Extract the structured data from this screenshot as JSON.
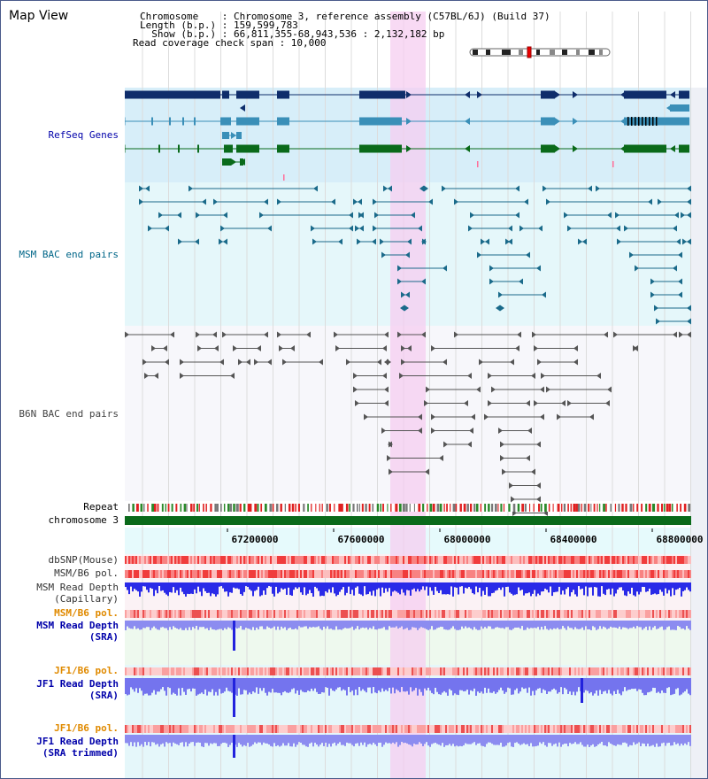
{
  "view": {
    "title": "Map View",
    "chromosome_line": "Chromosome    : Chromosome 3, reference assembly (C57BL/6J) (Build 37)",
    "length_line": "Length (b.p.) : 159,599,783",
    "show_line": "  Show (b.p.) : 66,811,355-68,943,536 : 2,132,182 bp",
    "coverage_line": "Read coverage check span : 10,000"
  },
  "tracks": {
    "refseq": "RefSeq Genes",
    "msm_bac": "MSM BAC end pairs",
    "b6n_bac": "B6N BAC end pairs",
    "repeat": "Repeat",
    "chromosome": "chromosome 3",
    "dbsnp": "dbSNP(Mouse)",
    "msm_b6_pol_1": "MSM/B6 pol.",
    "msm_depth_cap_1": "MSM Read Depth",
    "msm_depth_cap_2": "(Capillary)",
    "msm_b6_pol_2": "MSM/B6 pol.",
    "msm_depth_sra_1": "MSM Read Depth",
    "msm_depth_sra_2": "(SRA)",
    "jf1_b6_pol_1": "JF1/B6 pol.",
    "jf1_depth_sra_1": "JF1 Read Depth",
    "jf1_depth_sra_2": "(SRA)",
    "jf1_b6_pol_2": "JF1/B6 pol.",
    "jf1_depth_trim_1": "JF1 Read Depth",
    "jf1_depth_trim_2": "(SRA trimmed)"
  },
  "axis": {
    "ticks": [
      "67200000",
      "67600000",
      "68000000",
      "68400000",
      "68800000"
    ]
  },
  "colors": {
    "refseq_navy": "#0f2d6b",
    "refseq_cyan": "#3a8fb8",
    "refseq_green": "#0a6a1a",
    "msm_track": "#1a6a8a",
    "b6n_track": "#555555",
    "highlight": "#f6cdf0",
    "label_blue": "#0000aa",
    "label_teal": "#006688",
    "label_orange": "#e08a00"
  }
}
